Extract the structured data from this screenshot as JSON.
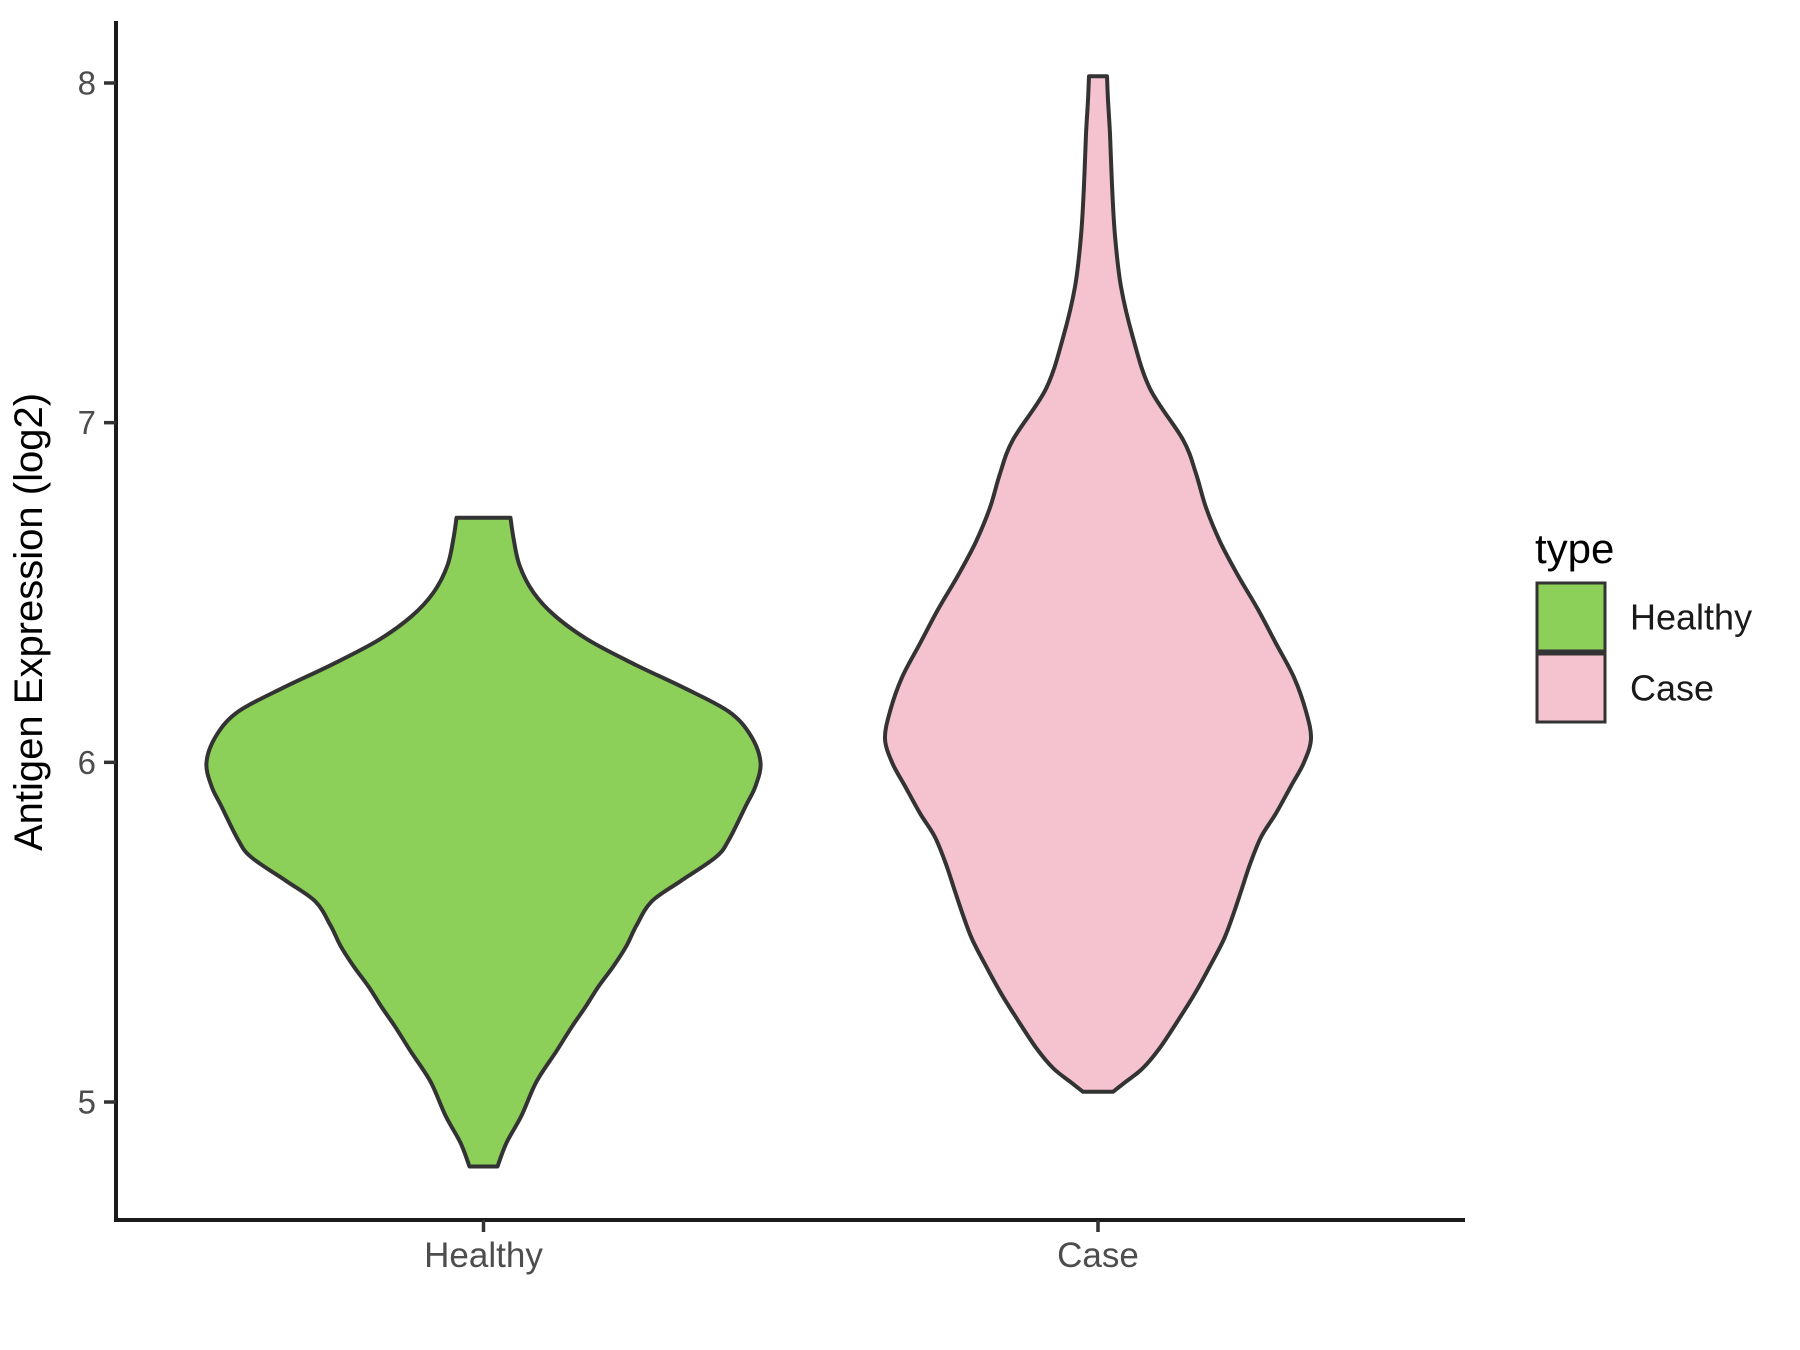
{
  "y_axis": {
    "label": "Antigen Expression (log2)",
    "ticks": [
      "8",
      "7",
      "6",
      "5"
    ],
    "tick_values": [
      8,
      7,
      6,
      5
    ]
  },
  "x_axis": {
    "categories": [
      "Healthy",
      "Case"
    ]
  },
  "legend": {
    "title": "type",
    "entries": [
      {
        "label": "Healthy",
        "color": "#8CD05A"
      },
      {
        "label": "Case",
        "color": "#F5C2CF"
      }
    ]
  },
  "chart_data": {
    "type": "violin",
    "title": "",
    "xlabel": "",
    "ylabel": "Antigen Expression (log2)",
    "ylim": [
      4.65,
      8.2
    ],
    "grid": false,
    "legend_position": "right",
    "outline_color": "#333333",
    "series": [
      {
        "name": "Healthy",
        "fill": "#8CD05A",
        "category_index": 0,
        "value_range": [
          4.81,
          6.72
        ],
        "peak_value": 5.98,
        "profile": [
          [
            6.72,
            27
          ],
          [
            6.66,
            30
          ],
          [
            6.58,
            36
          ],
          [
            6.5,
            50
          ],
          [
            6.43,
            72
          ],
          [
            6.36,
            105
          ],
          [
            6.29,
            150
          ],
          [
            6.22,
            200
          ],
          [
            6.15,
            245
          ],
          [
            6.08,
            267
          ],
          [
            6.0,
            277
          ],
          [
            5.93,
            272
          ],
          [
            5.87,
            262
          ],
          [
            5.77,
            245
          ],
          [
            5.72,
            232
          ],
          [
            5.65,
            197
          ],
          [
            5.59,
            168
          ],
          [
            5.52,
            153
          ],
          [
            5.46,
            143
          ],
          [
            5.4,
            130
          ],
          [
            5.34,
            115
          ],
          [
            5.28,
            102
          ],
          [
            5.22,
            88
          ],
          [
            5.15,
            73
          ],
          [
            5.06,
            53
          ],
          [
            4.96,
            38
          ],
          [
            4.88,
            23
          ],
          [
            4.81,
            14
          ]
        ]
      },
      {
        "name": "Case",
        "fill": "#F5C2CF",
        "category_index": 1,
        "value_range": [
          5.03,
          8.02
        ],
        "peak_value": 6.07,
        "profile": [
          [
            8.02,
            9
          ],
          [
            7.95,
            10
          ],
          [
            7.85,
            12
          ],
          [
            7.7,
            14
          ],
          [
            7.55,
            17
          ],
          [
            7.4,
            23
          ],
          [
            7.25,
            35
          ],
          [
            7.1,
            52
          ],
          [
            6.95,
            85
          ],
          [
            6.85,
            98
          ],
          [
            6.75,
            108
          ],
          [
            6.65,
            122
          ],
          [
            6.55,
            140
          ],
          [
            6.45,
            160
          ],
          [
            6.35,
            178
          ],
          [
            6.25,
            196
          ],
          [
            6.15,
            208
          ],
          [
            6.07,
            213
          ],
          [
            6.0,
            206
          ],
          [
            5.93,
            193
          ],
          [
            5.85,
            178
          ],
          [
            5.78,
            163
          ],
          [
            5.7,
            152
          ],
          [
            5.62,
            143
          ],
          [
            5.55,
            135
          ],
          [
            5.48,
            126
          ],
          [
            5.4,
            112
          ],
          [
            5.32,
            97
          ],
          [
            5.24,
            80
          ],
          [
            5.16,
            62
          ],
          [
            5.1,
            45
          ],
          [
            5.06,
            28
          ],
          [
            5.03,
            15
          ]
        ]
      }
    ]
  }
}
